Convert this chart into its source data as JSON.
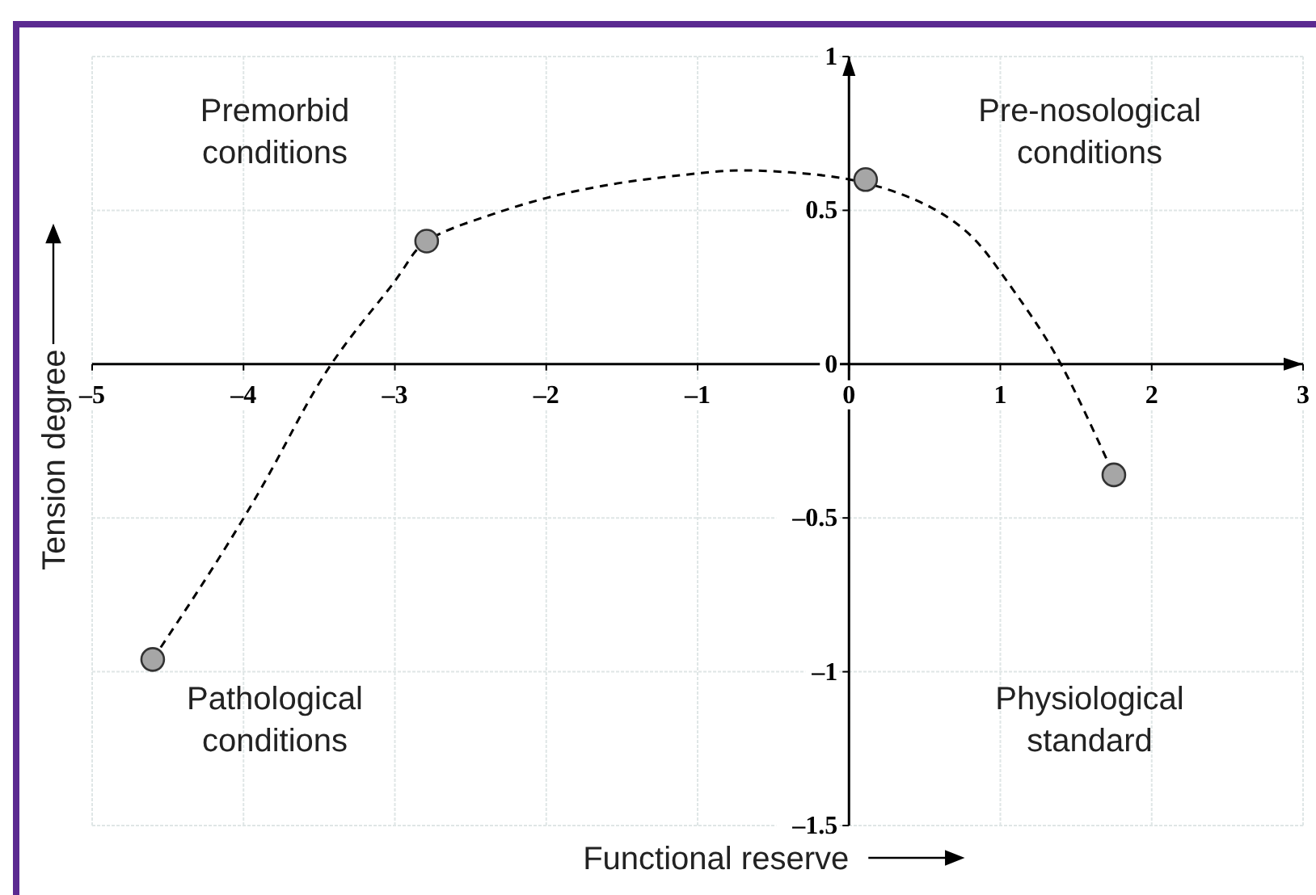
{
  "chart_data": {
    "type": "scatter",
    "xlabel": "Functional reserve",
    "ylabel": "Tension degree",
    "xlim": [
      -5,
      3
    ],
    "ylim": [
      -1.5,
      1
    ],
    "xticks": [
      {
        "value": -5,
        "label": "–5"
      },
      {
        "value": -4,
        "label": "–4"
      },
      {
        "value": -3,
        "label": "–3"
      },
      {
        "value": -2,
        "label": "–2"
      },
      {
        "value": -1,
        "label": "–1"
      },
      0,
      1,
      2,
      3
    ],
    "yticks": [
      {
        "value": -1.5,
        "label": "–1.5"
      },
      {
        "value": -1,
        "label": "–1"
      },
      {
        "value": -0.5,
        "label": "–0.5"
      },
      0,
      0.5,
      1
    ],
    "grid": true,
    "series": [
      {
        "type": "line",
        "color": "#000000",
        "line_style": "dashed",
        "marker": "none",
        "x": [
          -4.6,
          -4.2,
          -3.8,
          -3.42,
          -3.0,
          -2.79,
          -2.4,
          -2.0,
          -1.5,
          -1.0,
          -0.7,
          -0.3,
          0.1,
          0.5,
          0.8,
          1.0,
          1.2,
          1.4,
          1.6,
          1.75
        ],
        "values": [
          -0.96,
          -0.66,
          -0.33,
          0,
          0.27,
          0.4,
          0.48,
          0.54,
          0.59,
          0.62,
          0.63,
          0.62,
          0.59,
          0.52,
          0.42,
          0.3,
          0.16,
          0,
          -0.2,
          -0.36
        ]
      },
      {
        "color": "#a6a6a6",
        "marker": "circle",
        "x": [
          -4.6,
          -2.79,
          0.11,
          1.75
        ],
        "values": [
          -0.96,
          0.4,
          0.6,
          -0.36
        ]
      }
    ],
    "annotations": [
      "Premorbid\nconditions",
      "Pre-nosological\nconditions",
      "Pathological\nconditions",
      "Physiological\nstandard"
    ]
  }
}
